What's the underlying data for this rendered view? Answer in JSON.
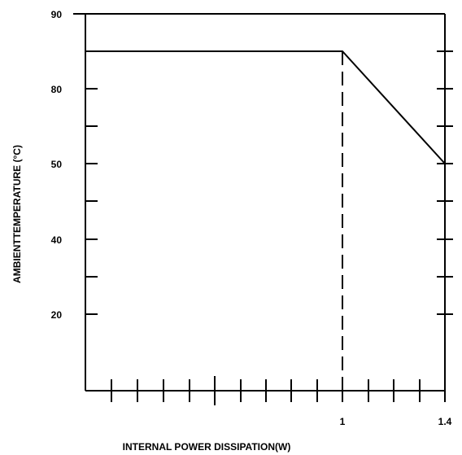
{
  "chart_data": {
    "type": "line",
    "xlabel": "INTERNAL POWER DISSIPATION(W)",
    "ylabel": "AMBIENTTEMPERATURE (°C)",
    "y_tick_labels": [
      "90",
      "80",
      "50",
      "40",
      "20"
    ],
    "x_tick_labels": [
      "1",
      "1.4"
    ],
    "series": [
      {
        "x": [
          0,
          1.0,
          1.4
        ],
        "y": [
          85,
          85,
          50
        ]
      }
    ],
    "reference_lines": [
      {
        "orientation": "vertical",
        "x": 1.0,
        "style": "dashed"
      }
    ],
    "grid": false,
    "colors": {
      "line": "#000000",
      "background": "#ffffff"
    }
  }
}
